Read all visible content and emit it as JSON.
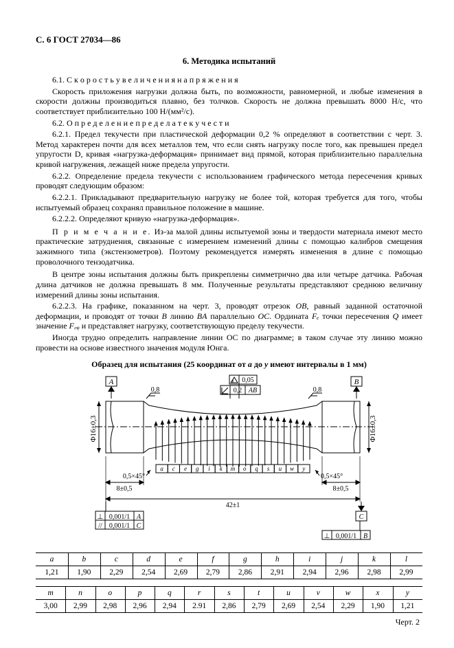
{
  "header": {
    "page": "С. 6",
    "doc": "ГОСТ 27034—86"
  },
  "section": {
    "num": "6.",
    "title": "Методика испытаний"
  },
  "body": {
    "p61_n": "6.1.",
    "p61_t": "С к о р о с т ь   у в е л и ч е н и я   н а п р я ж е н и я",
    "p61b": "Скорость приложения нагрузки должна быть, по возможности, равномерной, и любые изменения в скорости должны производиться плавно, без толчков. Скорость не должна превышать 8000 Н/с, что соответствует приблизительно 100 Н/(мм²/с).",
    "p62_n": "6.2.",
    "p62_t": "О п р е д е л е н и е   п р е д е л а   т е к у ч е с т и",
    "p621": "6.2.1. Предел текучести при пластической деформации 0,2 % определяют в соответствии с черт. 3. Метод характерен почти для всех металлов тем, что если снять нагрузку после того, как превышен предел упругости D, кривая «нагрузка-деформация» принимает вид прямой, которая приблизительно параллельна кривой нагружения, лежащей ниже предела упругости.",
    "p622": "6.2.2. Определение предела текучести с использованием графического метода пересечения кривых проводят следующим образом:",
    "p6221": "6.2.2.1. Прикладывают предварительную нагрузку не более той, которая требуется для того, чтобы испытуемый образец сохранял правильное положение в машине.",
    "p6222": "6.2.2.2. Определяют кривую «нагрузка-деформация».",
    "note_lbl": "П р и м е ч а н и е.",
    "note": " Из-за малой длины испытуемой зоны и твердости материала имеют место практические затруднения, связанные с измерением изменений длины с помощью калибров смещения зажимного типа (экстензометров). Поэтому рекомендуется измерять изменения в длине с помощью проволочного тензодатчика.",
    "center": "В центре зоны испытания должны быть прикреплены симметрично два или четыре датчика. Рабочая длина датчиков не должна превышать 8 мм. Полученные результаты представляют среднюю величину измерений длины зоны испытания.",
    "p6223a": "6.2.2.3. На графике, показанном на черт. 3, проводят отрезок ",
    "p6223b": ", равный заданной остаточной деформации, и проводят от точки ",
    "p6223c": " линию ",
    "p6223d": " параллельно ",
    "p6223e": ". Ордината ",
    "p6223f": " точки пересечения ",
    "p6223g": " имеет значение ",
    "p6223h": " и представляет нагрузку, соответствующую пределу текучести.",
    "s1": "OB",
    "s2": "B",
    "s3": "BA",
    "s4": "OC",
    "s5": "Fₑ",
    "s6": "Q",
    "s7": "F꜀ᵩ",
    "p_oc": "Иногда трудно определить направление линии OC по диаграмме; в таком случае эту линию можно провести на основе известного значения модуля Юнга."
  },
  "figure": {
    "caption_a": "Образец для испытания (25 координат от ",
    "caption_i1": "a",
    "caption_b": " до ",
    "caption_i2": "y",
    "caption_c": " имеют интервалы в 1 мм)",
    "A": "A",
    "B": "B",
    "C": "C",
    "t005": "0,05",
    "t02": "0,2",
    "tAB": "AB",
    "w08": "0,8",
    "phi": "Φ16±0,3",
    "chamf": "0,5×45°",
    "d8": "8±0,5",
    "d42": "42±1",
    "tol1": "⊥ 0,001/1 A",
    "tol2": "// 0,001/1 C",
    "tol3": "⊥ 0,001/1 B",
    "letters": [
      "a",
      "c",
      "e",
      "g",
      "i",
      "k",
      "m",
      "o",
      "q",
      "s",
      "u",
      "w",
      "y"
    ],
    "chert": "Черт. 2"
  },
  "tables": {
    "h1": [
      "a",
      "b",
      "c",
      "d",
      "e",
      "f",
      "g",
      "h",
      "i",
      "j",
      "k",
      "l"
    ],
    "v1": [
      "1,21",
      "1,90",
      "2,29",
      "2,54",
      "2,69",
      "2,79",
      "2,86",
      "2,91",
      "2,94",
      "2,96",
      "2,98",
      "2,99"
    ],
    "h2": [
      "m",
      "n",
      "o",
      "p",
      "q",
      "r",
      "s",
      "t",
      "u",
      "v",
      "w",
      "x",
      "y"
    ],
    "v2": [
      "3,00",
      "2,99",
      "2,98",
      "2,96",
      "2,94",
      "2.91",
      "2,86",
      "2,79",
      "2,69",
      "2,54",
      "2,29",
      "1,90",
      "1,21"
    ]
  },
  "colors": {
    "text": "#000000",
    "bg": "#ffffff",
    "line": "#000000"
  }
}
